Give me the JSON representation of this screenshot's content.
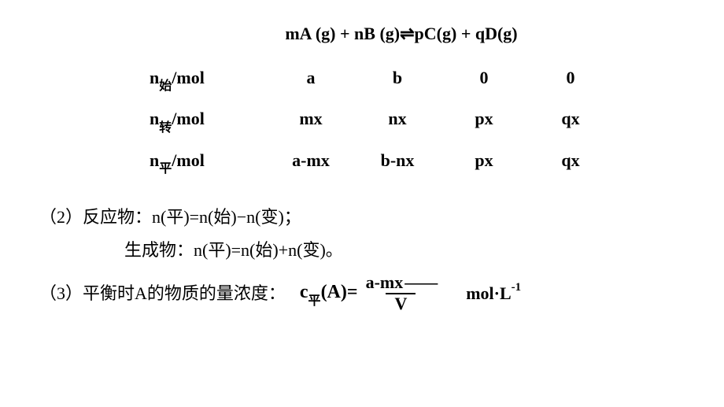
{
  "equation": "mA (g) + nB (g)⇌pC(g) + qD(g)",
  "table": {
    "rows": [
      {
        "label_prefix": "n",
        "label_sub": "始",
        "label_suffix": "/mol",
        "cells": [
          "a",
          "b",
          "0",
          "0"
        ]
      },
      {
        "label_prefix": "n",
        "label_sub": "转",
        "label_suffix": "/mol",
        "cells": [
          "mx",
          "nx",
          "px",
          "qx"
        ]
      },
      {
        "label_prefix": "n",
        "label_sub": "平",
        "label_suffix": "/mol",
        "cells": [
          "a-mx",
          "b-nx",
          "px",
          "qx"
        ]
      }
    ]
  },
  "lines": {
    "l2a": "（2）反应物：n(平)=n(始)−n(变)；",
    "l2b": "生成物：n(平)=n(始)+n(变)。",
    "l3_prefix": "（3）平衡时A的物质的量浓度：",
    "l3_c": "c",
    "l3_sub": "平",
    "l3_aeq": "(A)=",
    "frac_num": "a-mx",
    "frac_den": "V",
    "dash": "——",
    "unit_text": "mol·L",
    "unit_sup": "-1"
  },
  "style": {
    "bg": "#ffffff",
    "fg": "#000000",
    "font_main": 22,
    "font_sub": 16
  }
}
